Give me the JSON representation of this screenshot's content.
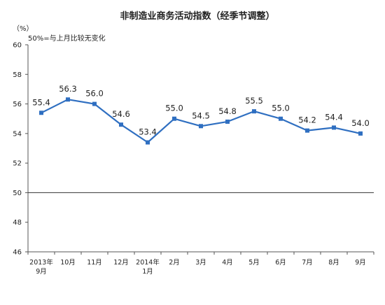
{
  "chart_data": {
    "type": "line",
    "title": "非制造业商务活动指数（经季节调整）",
    "ylabel": "（%）",
    "xlabel": "",
    "reference_note": "50%=与上月比较无变化",
    "ylim": [
      46,
      60
    ],
    "yticks": [
      46,
      48,
      50,
      52,
      54,
      56,
      58,
      60
    ],
    "reference_value": 50,
    "grid": false,
    "legend": "none",
    "categories": [
      [
        "2013年",
        "9月"
      ],
      [
        "10月"
      ],
      [
        "11月"
      ],
      [
        "12月"
      ],
      [
        "2014年",
        "1月"
      ],
      [
        "2月"
      ],
      [
        "3月"
      ],
      [
        "4月"
      ],
      [
        "5月"
      ],
      [
        "6月"
      ],
      [
        "7月"
      ],
      [
        "8月"
      ],
      [
        "9月"
      ]
    ],
    "series": [
      {
        "values": [
          55.4,
          56.3,
          56.0,
          54.6,
          53.4,
          55.0,
          54.5,
          54.8,
          55.5,
          55.0,
          54.2,
          54.4,
          54.0
        ],
        "labels": [
          "55.4",
          "56.3",
          "56.0",
          "54.6",
          "53.4",
          "55.0",
          "54.5",
          "54.8",
          "55.5",
          "55.0",
          "54.2",
          "54.4",
          "54.0"
        ],
        "color": "#2f6fc1"
      }
    ],
    "colors": {
      "axis": "#555555",
      "reference_line": "#333333",
      "text": "#222222"
    }
  }
}
